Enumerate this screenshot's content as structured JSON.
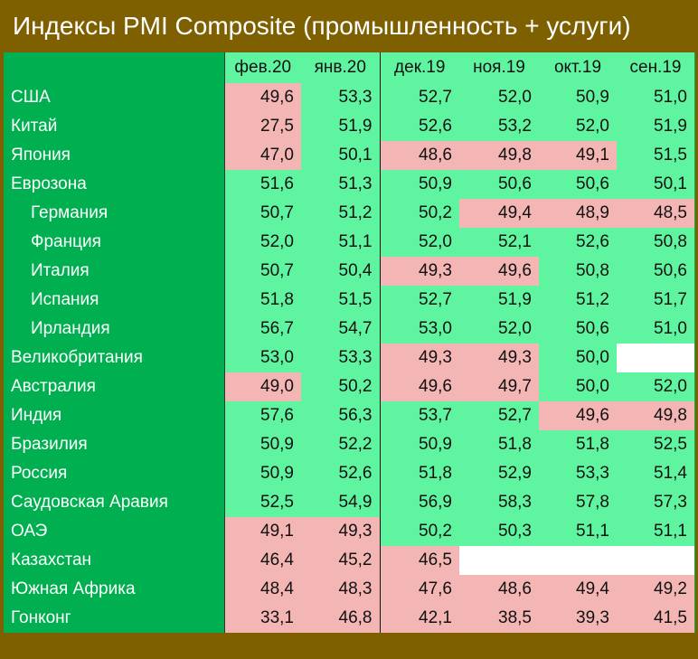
{
  "header": {
    "title": "Индексы PMI Composite (промышленность + услуги)"
  },
  "table": {
    "columns": [
      "фев.20",
      "янв.20",
      "дек.19",
      "ноя.19",
      "окт.19",
      "сен.19"
    ],
    "rows": [
      {
        "name": "США",
        "cells": [
          "49,6",
          "53,3",
          "52,7",
          "52,0",
          "50,9",
          "51,0"
        ]
      },
      {
        "name": "Китай",
        "cells": [
          "27,5",
          "51,9",
          "52,6",
          "53,2",
          "52,0",
          "51,9"
        ]
      },
      {
        "name": "Япония",
        "cells": [
          "47,0",
          "50,1",
          "48,6",
          "49,8",
          "49,1",
          "51,5"
        ]
      },
      {
        "name": "Еврозона",
        "cells": [
          "51,6",
          "51,3",
          "50,9",
          "50,6",
          "50,6",
          "50,1"
        ]
      },
      {
        "name": "Германия",
        "level": 1,
        "cells": [
          "50,7",
          "51,2",
          "50,2",
          "49,4",
          "48,9",
          "48,5"
        ]
      },
      {
        "name": "Франция",
        "level": 1,
        "cells": [
          "52,0",
          "51,1",
          "52,0",
          "52,1",
          "52,6",
          "50,8"
        ]
      },
      {
        "name": "Италия",
        "level": 1,
        "cells": [
          "50,7",
          "50,4",
          "49,3",
          "49,6",
          "50,8",
          "50,6"
        ]
      },
      {
        "name": "Испания",
        "level": 1,
        "cells": [
          "51,8",
          "51,5",
          "52,7",
          "51,9",
          "51,2",
          "51,7"
        ]
      },
      {
        "name": "Ирландия",
        "level": 1,
        "cells": [
          "56,7",
          "54,7",
          "53,0",
          "52,0",
          "50,6",
          "51,0"
        ]
      },
      {
        "name": "Великобритания",
        "cells": [
          "53,0",
          "53,3",
          "49,3",
          "49,3",
          "50,0",
          null
        ]
      },
      {
        "name": "Австралия",
        "cells": [
          "49,0",
          "50,2",
          "49,6",
          "49,7",
          "50,0",
          "52,0"
        ]
      },
      {
        "name": "Индия",
        "cells": [
          "57,6",
          "56,3",
          "53,7",
          "52,7",
          "49,6",
          "49,8"
        ]
      },
      {
        "name": "Бразилия",
        "cells": [
          "50,9",
          "52,2",
          "50,9",
          "51,8",
          "51,8",
          "52,5"
        ]
      },
      {
        "name": "Россия",
        "cells": [
          "50,9",
          "52,6",
          "51,8",
          "52,9",
          "53,3",
          "51,4"
        ]
      },
      {
        "name": "Саудовская Аравия",
        "cells": [
          "52,5",
          "54,9",
          "56,9",
          "58,3",
          "57,8",
          "57,3"
        ]
      },
      {
        "name": "ОАЭ",
        "cells": [
          "49,1",
          "49,3",
          "50,2",
          "50,3",
          "51,1",
          "51,1"
        ]
      },
      {
        "name": "Казахстан",
        "cells": [
          "46,4",
          "45,2",
          "46,5",
          null,
          null,
          null
        ]
      },
      {
        "name": "Южная Африка",
        "cells": [
          "48,4",
          "48,3",
          "47,6",
          "48,6",
          "49,4",
          "49,2"
        ]
      },
      {
        "name": "Гонконг",
        "cells": [
          "33,1",
          "46,8",
          "42,1",
          "38,5",
          "39,3",
          "41,5"
        ]
      }
    ]
  }
}
